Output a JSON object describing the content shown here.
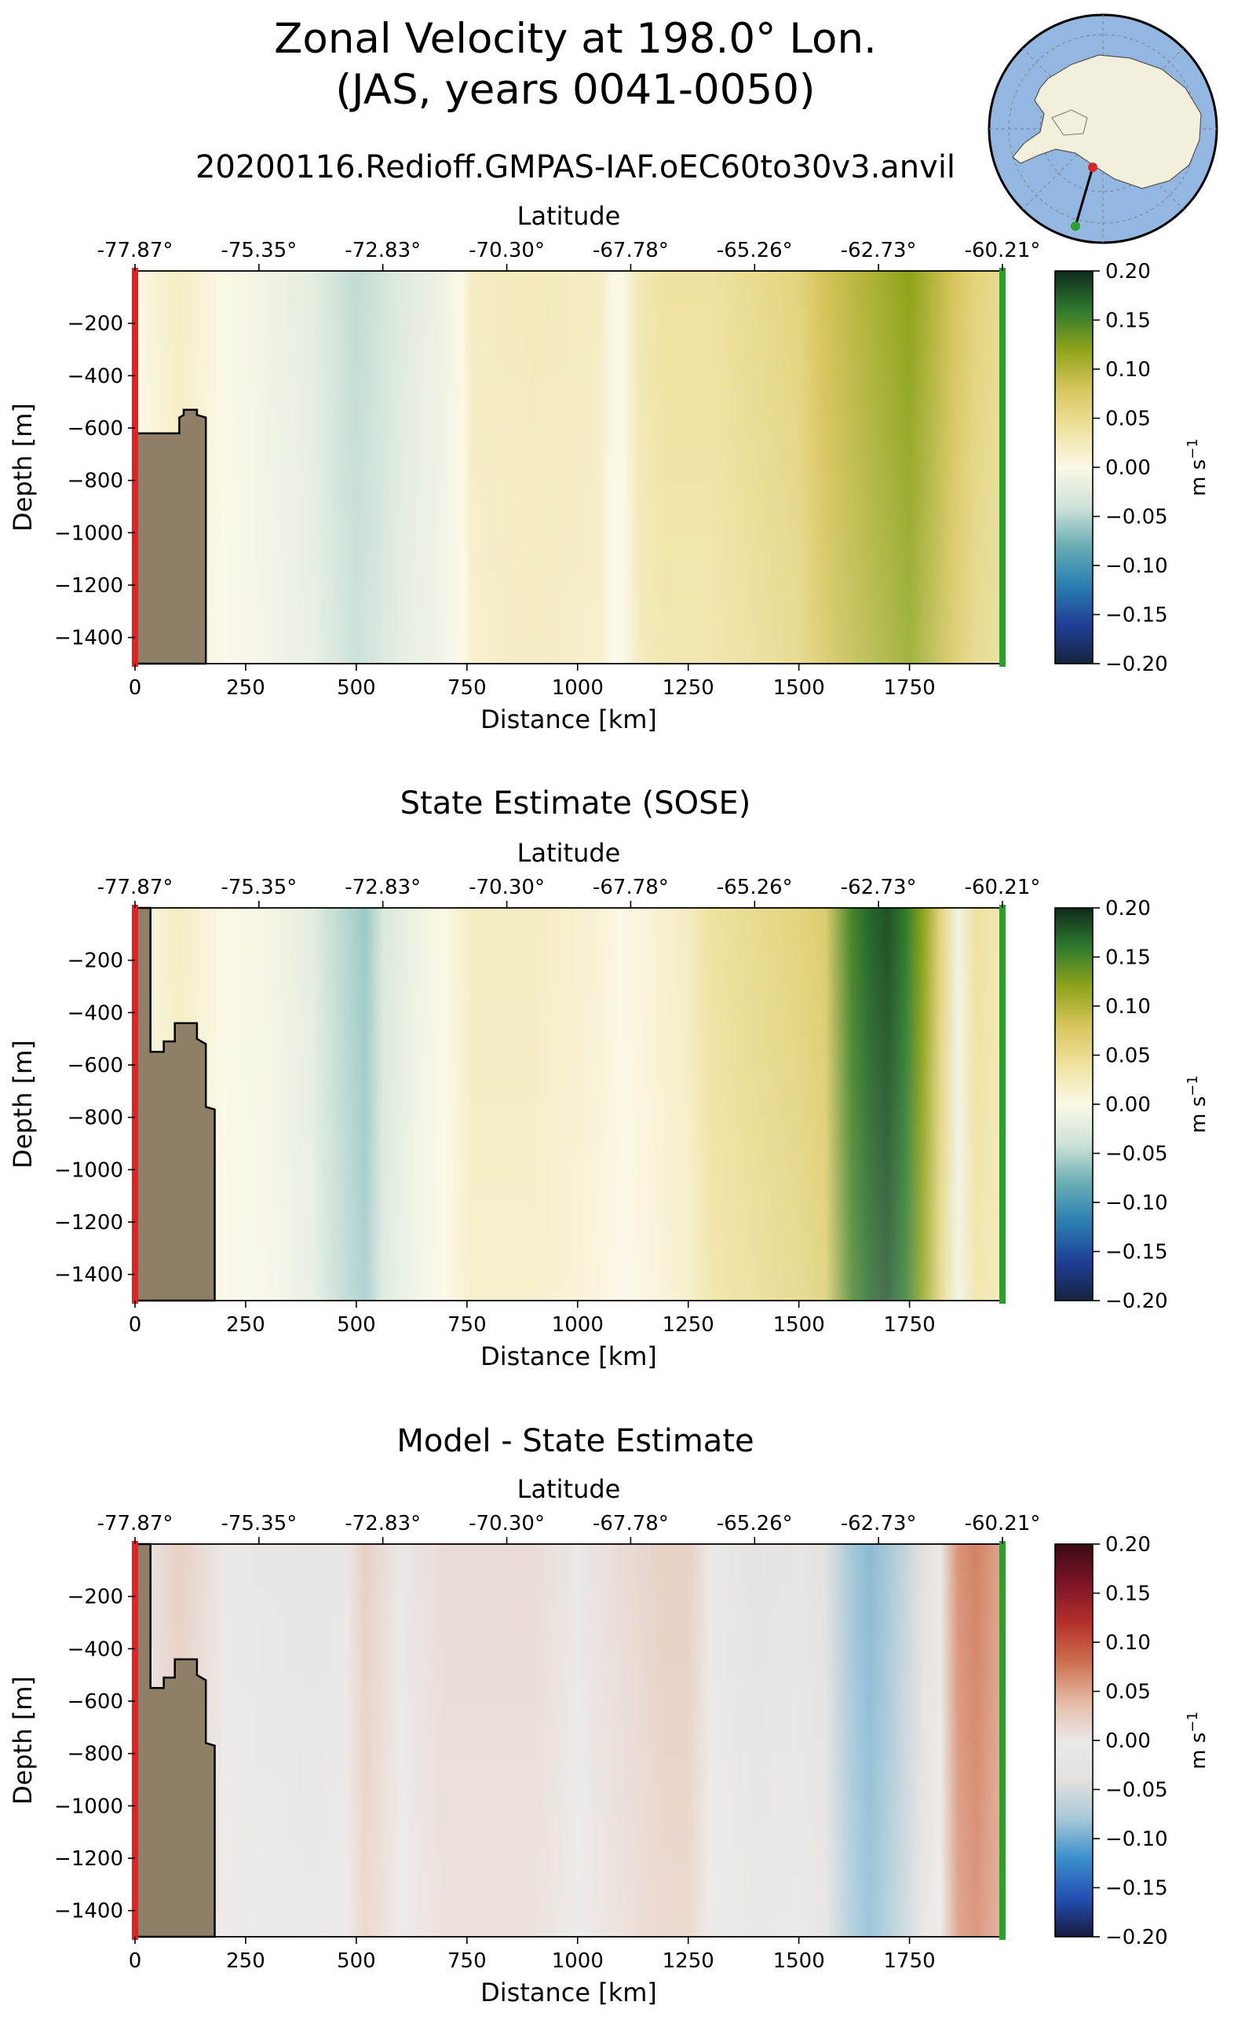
{
  "figure": {
    "title_line1": "Zonal Velocity at 198.0° Lon.",
    "title_line2": "(JAS, years 0041-0050)",
    "run_name": "20200116.Redioff.GMPAS-IAF.oEC60to30v3.anvil",
    "map_inset": {
      "description_icon": "antarctica-polar-map-icon",
      "start_marker_color": "#d62728",
      "end_marker_color": "#2ca02c"
    }
  },
  "chart_data": [
    {
      "type": "heatmap",
      "title": "",
      "xlabel": "Distance [km]",
      "ylabel": "Depth [m]",
      "top_xlabel": "Latitude",
      "xlim": [
        0,
        1960
      ],
      "ylim": [
        -1500,
        0
      ],
      "xticks": [
        0,
        250,
        500,
        750,
        1000,
        1250,
        1500,
        1750
      ],
      "yticks": [
        -200,
        -400,
        -600,
        -800,
        -1000,
        -1200,
        -1400
      ],
      "lat_tick_labels": [
        "-77.87°",
        "-75.35°",
        "-72.83°",
        "-70.30°",
        "-67.78°",
        "-65.26°",
        "-62.73°",
        "-60.21°"
      ],
      "colorbar": {
        "label": "m s-1",
        "cmap": "ocean_balance",
        "vmin": -0.2,
        "vmax": 0.2,
        "ticks": [
          "0.20",
          "0.15",
          "0.10",
          "0.05",
          "0.00",
          "−0.05",
          "−0.10",
          "−0.15",
          "−0.20"
        ]
      },
      "bathymetry": [
        [
          0,
          -620
        ],
        [
          20,
          -620
        ],
        [
          100,
          -620
        ],
        [
          100,
          -560
        ],
        [
          110,
          -550
        ],
        [
          110,
          -530
        ],
        [
          140,
          -530
        ],
        [
          140,
          -550
        ],
        [
          160,
          -560
        ],
        [
          160,
          -1500
        ]
      ],
      "velocity_profile": {
        "x_km": [
          0,
          50,
          100,
          150,
          200,
          300,
          400,
          500,
          600,
          700,
          740,
          760,
          900,
          1050,
          1080,
          1100,
          1140,
          1200,
          1300,
          1400,
          1500,
          1550,
          1600,
          1650,
          1700,
          1750,
          1800,
          1850,
          1900,
          1960
        ],
        "value": [
          0.0,
          0.01,
          0.02,
          0.01,
          0.0,
          -0.01,
          -0.02,
          -0.045,
          -0.025,
          -0.01,
          0.0,
          0.02,
          0.025,
          0.02,
          0.0,
          0.0,
          0.03,
          0.04,
          0.04,
          0.05,
          0.06,
          0.08,
          0.09,
          0.1,
          0.11,
          0.12,
          0.1,
          0.08,
          0.06,
          0.05
        ]
      }
    },
    {
      "type": "heatmap",
      "title": "State Estimate (SOSE)",
      "xlabel": "Distance [km]",
      "ylabel": "Depth [m]",
      "top_xlabel": "Latitude",
      "xlim": [
        0,
        1960
      ],
      "ylim": [
        -1500,
        0
      ],
      "xticks": [
        0,
        250,
        500,
        750,
        1000,
        1250,
        1500,
        1750
      ],
      "yticks": [
        -200,
        -400,
        -600,
        -800,
        -1000,
        -1200,
        -1400
      ],
      "lat_tick_labels": [
        "-77.87°",
        "-75.35°",
        "-72.83°",
        "-70.30°",
        "-67.78°",
        "-65.26°",
        "-62.73°",
        "-60.21°"
      ],
      "colorbar": {
        "label": "m s-1",
        "cmap": "ocean_balance",
        "vmin": -0.2,
        "vmax": 0.2,
        "ticks": [
          "0.20",
          "0.15",
          "0.10",
          "0.05",
          "0.00",
          "−0.05",
          "−0.10",
          "−0.15",
          "−0.20"
        ]
      },
      "bathymetry": [
        [
          0,
          0
        ],
        [
          35,
          0
        ],
        [
          35,
          -550
        ],
        [
          65,
          -550
        ],
        [
          65,
          -510
        ],
        [
          90,
          -510
        ],
        [
          90,
          -440
        ],
        [
          140,
          -440
        ],
        [
          140,
          -500
        ],
        [
          160,
          -520
        ],
        [
          160,
          -760
        ],
        [
          180,
          -770
        ],
        [
          180,
          -1500
        ]
      ],
      "velocity_profile": {
        "x_km": [
          0,
          50,
          100,
          150,
          200,
          300,
          400,
          480,
          520,
          560,
          640,
          700,
          760,
          900,
          1050,
          1100,
          1250,
          1300,
          1400,
          1500,
          1560,
          1620,
          1660,
          1700,
          1740,
          1780,
          1820,
          1860,
          1900,
          1960
        ],
        "value": [
          0.0,
          0.01,
          0.02,
          0.01,
          0.0,
          -0.005,
          -0.02,
          -0.05,
          -0.06,
          -0.03,
          -0.01,
          0.0,
          0.02,
          0.02,
          0.01,
          0.0,
          0.02,
          0.04,
          0.05,
          0.06,
          0.07,
          0.15,
          0.17,
          0.18,
          0.16,
          0.12,
          0.06,
          -0.01,
          0.04,
          0.03
        ]
      }
    },
    {
      "type": "heatmap",
      "title": "Model - State Estimate",
      "xlabel": "Distance [km]",
      "ylabel": "Depth [m]",
      "top_xlabel": "Latitude",
      "xlim": [
        0,
        1960
      ],
      "ylim": [
        -1500,
        0
      ],
      "xticks": [
        0,
        250,
        500,
        750,
        1000,
        1250,
        1500,
        1750
      ],
      "yticks": [
        -200,
        -400,
        -600,
        -800,
        -1000,
        -1200,
        -1400
      ],
      "lat_tick_labels": [
        "-77.87°",
        "-75.35°",
        "-72.83°",
        "-70.30°",
        "-67.78°",
        "-65.26°",
        "-62.73°",
        "-60.21°"
      ],
      "colorbar": {
        "label": "m s-1",
        "cmap": "balance",
        "vmin": -0.2,
        "vmax": 0.2,
        "ticks": [
          "0.20",
          "0.15",
          "0.10",
          "0.05",
          "0.00",
          "−0.05",
          "−0.10",
          "−0.15",
          "−0.20"
        ]
      },
      "bathymetry": [
        [
          0,
          0
        ],
        [
          35,
          0
        ],
        [
          35,
          -550
        ],
        [
          65,
          -550
        ],
        [
          65,
          -510
        ],
        [
          90,
          -510
        ],
        [
          90,
          -440
        ],
        [
          140,
          -440
        ],
        [
          140,
          -500
        ],
        [
          160,
          -520
        ],
        [
          160,
          -760
        ],
        [
          180,
          -770
        ],
        [
          180,
          -1500
        ]
      ],
      "velocity_profile": {
        "x_km": [
          0,
          50,
          100,
          150,
          200,
          300,
          400,
          480,
          520,
          600,
          700,
          800,
          900,
          1000,
          1100,
          1200,
          1250,
          1300,
          1400,
          1500,
          1560,
          1620,
          1660,
          1700,
          1740,
          1780,
          1820,
          1860,
          1900,
          1960
        ],
        "value": [
          0.0,
          0.01,
          0.02,
          0.01,
          0.0,
          -0.01,
          -0.02,
          -0.01,
          0.02,
          0.0,
          0.01,
          0.01,
          0.01,
          0.0,
          0.01,
          0.02,
          0.02,
          0.0,
          -0.03,
          -0.02,
          -0.04,
          -0.08,
          -0.09,
          -0.08,
          -0.06,
          -0.04,
          0.0,
          0.06,
          0.07,
          0.05
        ]
      }
    }
  ]
}
